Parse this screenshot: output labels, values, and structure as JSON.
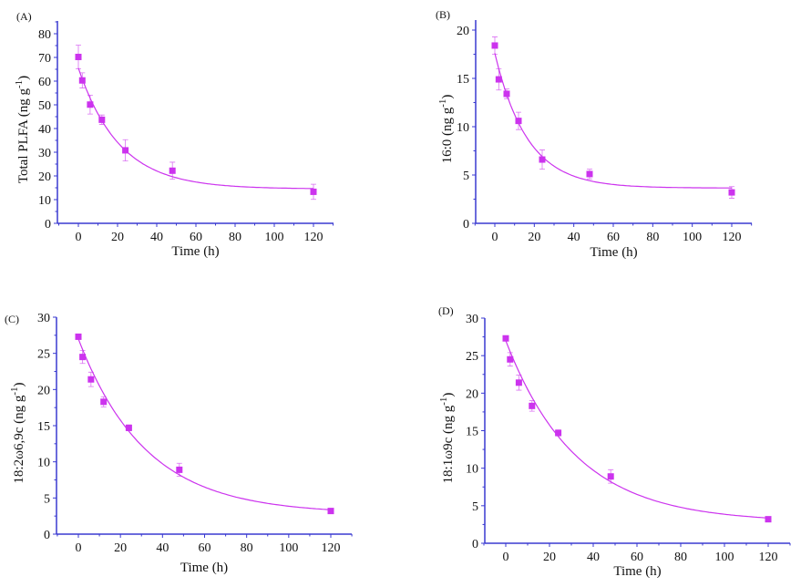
{
  "chart_data": [
    {
      "type": "scatter",
      "panel_label": "(A)",
      "xlabel": "Time (h)",
      "ylabel": {
        "main": "Total PLFA (ng g",
        "sup": "-1",
        "end": ")"
      },
      "xlim": [
        -10,
        130
      ],
      "ylim": [
        0,
        80
      ],
      "xticks": [
        0,
        20,
        40,
        60,
        80,
        100,
        120
      ],
      "yticks": [
        0,
        10,
        20,
        30,
        40,
        50,
        60,
        70,
        80
      ],
      "x": [
        0,
        2,
        6,
        12,
        24,
        48,
        120
      ],
      "y": [
        70.2,
        60.3,
        50.1,
        43.7,
        30.8,
        22.2,
        13.3
      ],
      "err": [
        5.0,
        3.2,
        4.0,
        2.0,
        4.5,
        3.6,
        3.2
      ],
      "fit": {
        "model": "exponential decay",
        "y0": 14.5,
        "A": 51,
        "tau": 21
      }
    },
    {
      "type": "scatter",
      "panel_label": "(B)",
      "xlabel": "Time (h)",
      "ylabel": {
        "main": "16:0 (ng g",
        "sup": "-1",
        "end": ")"
      },
      "xlim": [
        -10,
        130
      ],
      "ylim": [
        0,
        20
      ],
      "xticks": [
        0,
        20,
        40,
        60,
        80,
        100,
        120
      ],
      "yticks": [
        0,
        5,
        10,
        15,
        20
      ],
      "x": [
        0,
        2,
        6,
        12,
        24,
        48,
        120
      ],
      "y": [
        18.4,
        14.9,
        13.4,
        10.6,
        6.6,
        5.1,
        3.2
      ],
      "err": [
        0.9,
        1.1,
        0.5,
        0.9,
        1.0,
        0.5,
        0.6
      ],
      "fit": {
        "model": "exponential decay",
        "y0": 3.65,
        "A": 13.95,
        "tau": 16.5
      }
    },
    {
      "type": "scatter",
      "panel_label": "(C)",
      "xlabel": "Time (h)",
      "ylabel": {
        "main": "18:2ω6,9c (ng g",
        "sup": "-1",
        "end": ")"
      },
      "xlim": [
        -10,
        130
      ],
      "ylim": [
        0,
        30
      ],
      "xticks": [
        0,
        20,
        40,
        60,
        80,
        100,
        120
      ],
      "yticks": [
        0,
        5,
        10,
        15,
        20,
        25,
        30
      ],
      "x": [
        0,
        2,
        6,
        12,
        24,
        48,
        120
      ],
      "y": [
        27.3,
        24.5,
        21.4,
        18.3,
        14.7,
        8.9,
        3.2
      ],
      "err": [
        0.3,
        0.9,
        1.0,
        0.7,
        0.4,
        0.9,
        0.3
      ],
      "fit": {
        "model": "exponential decay",
        "y0": 2.8,
        "A": 24.2,
        "tau": 32
      }
    },
    {
      "type": "scatter",
      "panel_label": "(D)",
      "xlabel": "Time (h)",
      "ylabel": {
        "main": "18:1ω9c (ng g",
        "sup": "-1",
        "end": ")"
      },
      "xlim": [
        -10,
        130
      ],
      "ylim": [
        0,
        30
      ],
      "xticks": [
        0,
        20,
        40,
        60,
        80,
        100,
        120
      ],
      "yticks": [
        0,
        5,
        10,
        15,
        20,
        25,
        30
      ],
      "x": [
        0,
        2,
        6,
        12,
        24,
        48,
        120
      ],
      "y": [
        27.3,
        24.5,
        21.4,
        18.3,
        14.7,
        8.9,
        3.2
      ],
      "err": [
        0.3,
        0.9,
        1.0,
        0.7,
        0.4,
        0.9,
        0.3
      ],
      "fit": {
        "model": "exponential decay",
        "y0": 2.8,
        "A": 24.2,
        "tau": 32
      }
    }
  ],
  "colors": {
    "series": "#cc33ee",
    "axis": "#3a3ad0",
    "text": "#111111"
  }
}
